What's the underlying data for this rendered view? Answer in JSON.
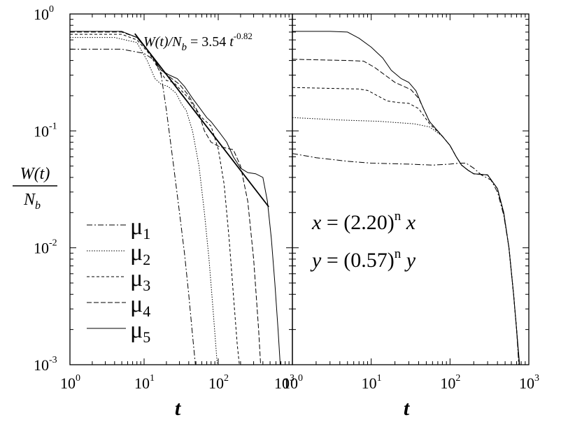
{
  "chart_data": [
    {
      "type": "line",
      "panel": "left",
      "xscale": "log",
      "yscale": "log",
      "xlim": [
        1,
        1000
      ],
      "ylim": [
        0.001,
        1
      ],
      "xlabel": "t",
      "ylabel_num": "W(t)",
      "ylabel_den": "N",
      "ylabel_den_sub": "b",
      "x_ticks": [
        {
          "base": "10",
          "exp": "0"
        },
        {
          "base": "10",
          "exp": "1"
        },
        {
          "base": "10",
          "exp": "2"
        },
        {
          "base": "10",
          "exp": "3"
        }
      ],
      "y_ticks": [
        {
          "base": "10",
          "exp": "-3"
        },
        {
          "base": "10",
          "exp": "-2"
        },
        {
          "base": "10",
          "exp": "-1"
        },
        {
          "base": "10",
          "exp": "0"
        }
      ],
      "fit": {
        "label_main": "W(t)/N",
        "label_sub": "b",
        "label_rest": " = 3.54 ",
        "label_t": "t",
        "label_exp": "-0.82",
        "prefactor": 3.54,
        "exponent": -0.82,
        "t_range": [
          7.5,
          480
        ]
      },
      "legend": {
        "placement": "bottom-left",
        "symbol": "μ",
        "entries": [
          {
            "sub": "1",
            "dash": "8,3,2,3"
          },
          {
            "sub": "2",
            "dash": "1.5,2"
          },
          {
            "sub": "3",
            "dash": "4,3"
          },
          {
            "sub": "4",
            "dash": "7,3"
          },
          {
            "sub": "5",
            "dash": ""
          }
        ]
      },
      "series": [
        {
          "dash": "8,3,2,3",
          "points": [
            [
              1,
              0.5
            ],
            [
              5,
              0.5
            ],
            [
              10,
              0.46
            ],
            [
              14,
              0.4
            ],
            [
              17,
              0.3
            ],
            [
              20,
              0.15
            ],
            [
              25,
              0.05
            ],
            [
              30,
              0.02
            ],
            [
              35,
              0.009
            ],
            [
              40,
              0.004
            ],
            [
              45,
              0.0018
            ],
            [
              50,
              0.0009
            ]
          ]
        },
        {
          "dash": "1.5,2",
          "points": [
            [
              1,
              0.63
            ],
            [
              4,
              0.63
            ],
            [
              8,
              0.57
            ],
            [
              11,
              0.4
            ],
            [
              14,
              0.28
            ],
            [
              17,
              0.25
            ],
            [
              21,
              0.24
            ],
            [
              27,
              0.21
            ],
            [
              32,
              0.17
            ],
            [
              37,
              0.15
            ],
            [
              45,
              0.1
            ],
            [
              55,
              0.05
            ],
            [
              65,
              0.02
            ],
            [
              75,
              0.008
            ],
            [
              85,
              0.003
            ],
            [
              95,
              0.0012
            ],
            [
              100,
              0.0008
            ]
          ]
        },
        {
          "dash": "4,3",
          "points": [
            [
              1,
              0.67
            ],
            [
              5,
              0.67
            ],
            [
              8,
              0.6
            ],
            [
              12,
              0.45
            ],
            [
              16,
              0.33
            ],
            [
              20,
              0.27
            ],
            [
              25,
              0.26
            ],
            [
              30,
              0.23
            ],
            [
              40,
              0.19
            ],
            [
              50,
              0.15
            ],
            [
              60,
              0.13
            ],
            [
              80,
              0.11
            ],
            [
              100,
              0.07
            ],
            [
              120,
              0.035
            ],
            [
              140,
              0.012
            ],
            [
              160,
              0.004
            ],
            [
              180,
              0.0015
            ],
            [
              200,
              0.0008
            ]
          ]
        },
        {
          "dash": "7,3",
          "points": [
            [
              1,
              0.7
            ],
            [
              5,
              0.7
            ],
            [
              8,
              0.63
            ],
            [
              12,
              0.46
            ],
            [
              17,
              0.33
            ],
            [
              22,
              0.29
            ],
            [
              30,
              0.25
            ],
            [
              40,
              0.2
            ],
            [
              55,
              0.14
            ],
            [
              65,
              0.1
            ],
            [
              80,
              0.08
            ],
            [
              100,
              0.074
            ],
            [
              130,
              0.071
            ],
            [
              160,
              0.069
            ],
            [
              200,
              0.05
            ],
            [
              250,
              0.025
            ],
            [
              300,
              0.008
            ],
            [
              350,
              0.002
            ],
            [
              380,
              0.0008
            ]
          ]
        },
        {
          "dash": "",
          "points": [
            [
              1,
              0.71
            ],
            [
              5,
              0.71
            ],
            [
              8,
              0.63
            ],
            [
              12,
              0.46
            ],
            [
              17,
              0.33
            ],
            [
              22,
              0.3
            ],
            [
              28,
              0.28
            ],
            [
              35,
              0.24
            ],
            [
              45,
              0.19
            ],
            [
              55,
              0.16
            ],
            [
              70,
              0.13
            ],
            [
              80,
              0.12
            ],
            [
              100,
              0.1
            ],
            [
              130,
              0.08
            ],
            [
              160,
              0.06
            ],
            [
              200,
              0.048
            ],
            [
              250,
              0.044
            ],
            [
              320,
              0.043
            ],
            [
              400,
              0.04
            ],
            [
              460,
              0.025
            ],
            [
              520,
              0.012
            ],
            [
              580,
              0.005
            ],
            [
              640,
              0.002
            ],
            [
              700,
              0.0008
            ]
          ]
        }
      ]
    },
    {
      "type": "line",
      "panel": "right",
      "xscale": "log",
      "yscale": "log",
      "xlim": [
        1,
        1000
      ],
      "ylim": [
        0.001,
        1
      ],
      "xlabel": "t",
      "x_ticks": [
        {
          "base": "10",
          "exp": "0"
        },
        {
          "base": "10",
          "exp": "1"
        },
        {
          "base": "10",
          "exp": "2"
        },
        {
          "base": "10",
          "exp": "3"
        }
      ],
      "annotation": {
        "line1": {
          "pre": "x",
          "mid": " = (2.20)",
          "exp": "n",
          "post": "x"
        },
        "line2": {
          "pre": "y",
          "mid": " = (0.57)",
          "exp": "n",
          "post": "y"
        }
      },
      "series": [
        {
          "dash": "8,3,2,3",
          "points": [
            [
              1,
              0.064
            ],
            [
              2,
              0.059
            ],
            [
              5,
              0.055
            ],
            [
              10,
              0.053
            ],
            [
              30,
              0.052
            ],
            [
              60,
              0.051
            ],
            [
              100,
              0.052
            ],
            [
              130,
              0.053
            ],
            [
              160,
              0.053
            ],
            [
              200,
              0.048
            ],
            [
              250,
              0.042
            ],
            [
              330,
              0.038
            ],
            [
              400,
              0.03
            ],
            [
              480,
              0.019
            ],
            [
              560,
              0.01
            ],
            [
              640,
              0.004
            ],
            [
              700,
              0.002
            ],
            [
              760,
              0.0008
            ]
          ]
        },
        {
          "dash": "1.5,2",
          "points": [
            [
              1,
              0.13
            ],
            [
              2,
              0.127
            ],
            [
              4,
              0.124
            ],
            [
              8,
              0.122
            ],
            [
              12,
              0.121
            ],
            [
              20,
              0.118
            ],
            [
              35,
              0.115
            ],
            [
              55,
              0.108
            ],
            [
              80,
              0.09
            ],
            [
              100,
              0.075
            ],
            [
              120,
              0.06
            ],
            [
              140,
              0.051
            ],
            [
              170,
              0.046
            ],
            [
              200,
              0.043
            ],
            [
              300,
              0.042
            ],
            [
              400,
              0.032
            ],
            [
              480,
              0.02
            ],
            [
              560,
              0.01
            ],
            [
              640,
              0.004
            ],
            [
              700,
              0.002
            ],
            [
              770,
              0.0008
            ]
          ]
        },
        {
          "dash": "4,3",
          "points": [
            [
              1,
              0.235
            ],
            [
              4,
              0.23
            ],
            [
              7,
              0.228
            ],
            [
              9,
              0.222
            ],
            [
              12,
              0.2
            ],
            [
              16,
              0.18
            ],
            [
              22,
              0.175
            ],
            [
              30,
              0.172
            ],
            [
              40,
              0.155
            ],
            [
              55,
              0.115
            ],
            [
              80,
              0.09
            ],
            [
              100,
              0.075
            ],
            [
              120,
              0.06
            ],
            [
              140,
              0.051
            ],
            [
              170,
              0.046
            ],
            [
              200,
              0.043
            ],
            [
              300,
              0.042
            ],
            [
              400,
              0.032
            ],
            [
              480,
              0.02
            ],
            [
              560,
              0.01
            ],
            [
              640,
              0.004
            ],
            [
              700,
              0.002
            ],
            [
              775,
              0.0008
            ]
          ]
        },
        {
          "dash": "7,3",
          "points": [
            [
              1,
              0.41
            ],
            [
              5,
              0.4
            ],
            [
              8,
              0.395
            ],
            [
              11,
              0.35
            ],
            [
              15,
              0.3
            ],
            [
              20,
              0.26
            ],
            [
              26,
              0.24
            ],
            [
              32,
              0.225
            ],
            [
              40,
              0.19
            ],
            [
              55,
              0.12
            ],
            [
              80,
              0.09
            ],
            [
              100,
              0.075
            ],
            [
              120,
              0.06
            ],
            [
              140,
              0.051
            ],
            [
              170,
              0.046
            ],
            [
              200,
              0.043
            ],
            [
              300,
              0.042
            ],
            [
              400,
              0.032
            ],
            [
              480,
              0.02
            ],
            [
              560,
              0.01
            ],
            [
              640,
              0.004
            ],
            [
              700,
              0.002
            ],
            [
              780,
              0.0008
            ]
          ]
        },
        {
          "dash": "",
          "points": [
            [
              1,
              0.71
            ],
            [
              3,
              0.71
            ],
            [
              5,
              0.7
            ],
            [
              7,
              0.62
            ],
            [
              10,
              0.52
            ],
            [
              14,
              0.42
            ],
            [
              18,
              0.33
            ],
            [
              24,
              0.28
            ],
            [
              30,
              0.26
            ],
            [
              37,
              0.22
            ],
            [
              45,
              0.16
            ],
            [
              55,
              0.12
            ],
            [
              80,
              0.09
            ],
            [
              100,
              0.075
            ],
            [
              120,
              0.06
            ],
            [
              140,
              0.051
            ],
            [
              170,
              0.046
            ],
            [
              200,
              0.043
            ],
            [
              300,
              0.042
            ],
            [
              400,
              0.032
            ],
            [
              480,
              0.02
            ],
            [
              560,
              0.01
            ],
            [
              640,
              0.004
            ],
            [
              700,
              0.002
            ],
            [
              785,
              0.0008
            ]
          ]
        }
      ]
    }
  ]
}
